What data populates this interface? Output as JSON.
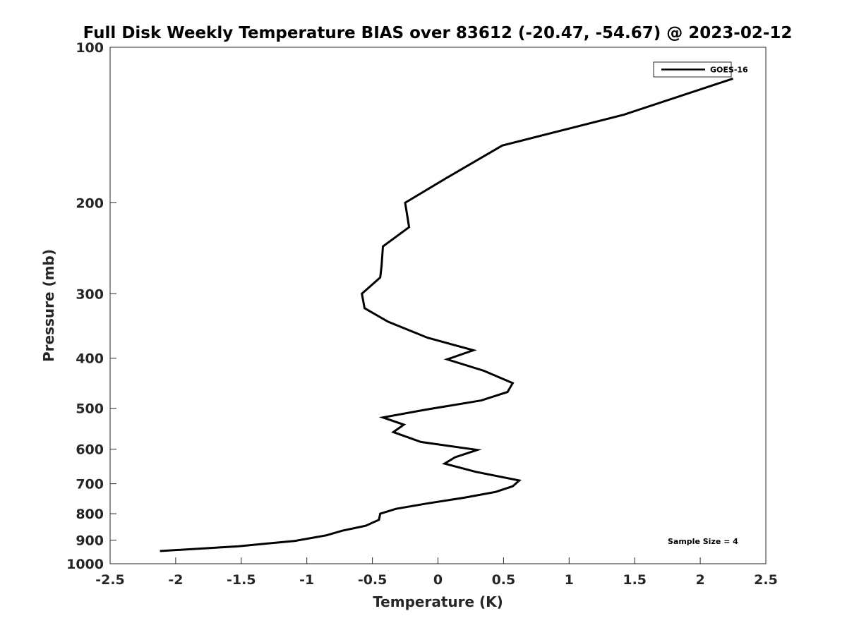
{
  "chart_data": {
    "type": "line",
    "title": "Full Disk Weekly Temperature BIAS over 83612 (-20.47, -54.67) @ 2023-02-12",
    "xlabel": "Temperature (K)",
    "ylabel": "Pressure (mb)",
    "xlim": [
      -2.5,
      2.5
    ],
    "ylim": [
      100,
      1000
    ],
    "y_scale": "log",
    "y_reversed": true,
    "x_ticks": [
      -2.5,
      -2,
      -1.5,
      -1,
      -0.5,
      0,
      0.5,
      1,
      1.5,
      2,
      2.5
    ],
    "x_tick_labels": [
      "-2.5",
      "-2",
      "-1.5",
      "-1",
      "-0.5",
      "0",
      "0.5",
      "1",
      "1.5",
      "2",
      "2.5"
    ],
    "y_ticks": [
      100,
      200,
      300,
      400,
      500,
      600,
      700,
      800,
      900,
      1000
    ],
    "y_tick_labels": [
      "100",
      "200",
      "300",
      "400",
      "500",
      "600",
      "700",
      "800",
      "900",
      "1000"
    ],
    "grid": false,
    "legend_position": "top-right",
    "annotation": "Sample Size = 4",
    "series": [
      {
        "name": "GOES-16",
        "color": "#000000",
        "points": [
          {
            "x": 2.25,
            "y": 115
          },
          {
            "x": 1.42,
            "y": 135
          },
          {
            "x": 0.49,
            "y": 155
          },
          {
            "x": 0.05,
            "y": 180
          },
          {
            "x": -0.25,
            "y": 200
          },
          {
            "x": -0.22,
            "y": 223
          },
          {
            "x": -0.42,
            "y": 243
          },
          {
            "x": -0.43,
            "y": 265
          },
          {
            "x": -0.44,
            "y": 279
          },
          {
            "x": -0.58,
            "y": 300
          },
          {
            "x": -0.56,
            "y": 320
          },
          {
            "x": -0.38,
            "y": 340
          },
          {
            "x": -0.08,
            "y": 365
          },
          {
            "x": 0.27,
            "y": 386
          },
          {
            "x": 0.07,
            "y": 402
          },
          {
            "x": 0.35,
            "y": 423
          },
          {
            "x": 0.57,
            "y": 447
          },
          {
            "x": 0.53,
            "y": 465
          },
          {
            "x": 0.33,
            "y": 483
          },
          {
            "x": -0.09,
            "y": 503
          },
          {
            "x": -0.42,
            "y": 521
          },
          {
            "x": -0.26,
            "y": 538
          },
          {
            "x": -0.34,
            "y": 556
          },
          {
            "x": -0.13,
            "y": 581
          },
          {
            "x": 0.3,
            "y": 602
          },
          {
            "x": 0.13,
            "y": 622
          },
          {
            "x": 0.05,
            "y": 640
          },
          {
            "x": 0.29,
            "y": 664
          },
          {
            "x": 0.62,
            "y": 690
          },
          {
            "x": 0.57,
            "y": 708
          },
          {
            "x": 0.44,
            "y": 726
          },
          {
            "x": 0.2,
            "y": 745
          },
          {
            "x": -0.09,
            "y": 765
          },
          {
            "x": -0.32,
            "y": 783
          },
          {
            "x": -0.44,
            "y": 800
          },
          {
            "x": -0.45,
            "y": 822
          },
          {
            "x": -0.55,
            "y": 844
          },
          {
            "x": -0.73,
            "y": 863
          },
          {
            "x": -0.85,
            "y": 881
          },
          {
            "x": -1.09,
            "y": 903
          },
          {
            "x": -1.52,
            "y": 925
          },
          {
            "x": -2.12,
            "y": 945
          }
        ]
      }
    ]
  }
}
